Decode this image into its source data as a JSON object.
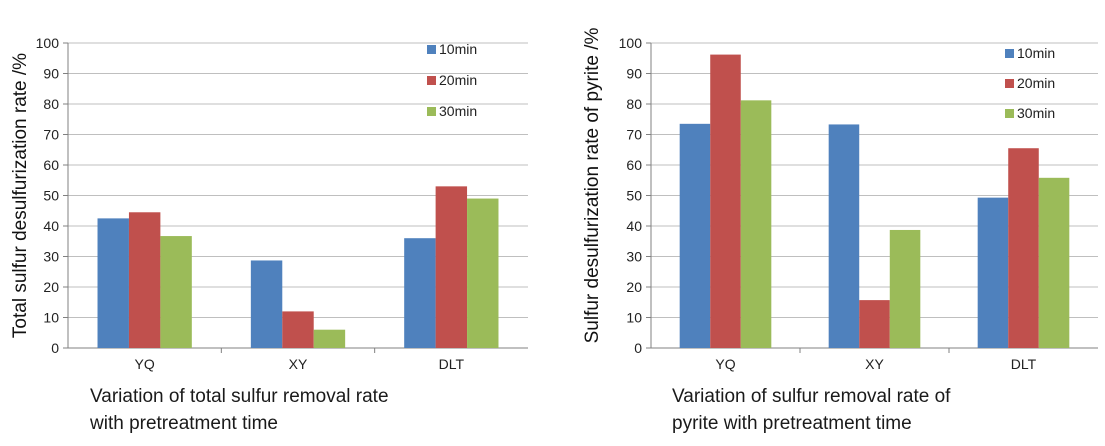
{
  "colors": {
    "10min": "#4f81bd",
    "20min": "#c0504d",
    "30min": "#9bbb59",
    "grid": "#bfbfbf",
    "axis": "#808080"
  },
  "chart_data": [
    {
      "type": "bar",
      "categories": [
        "YQ",
        "XY",
        "DLT"
      ],
      "series": [
        {
          "name": "10min",
          "values": [
            42.5,
            28.7,
            36
          ]
        },
        {
          "name": "20min",
          "values": [
            44.5,
            12,
            53
          ]
        },
        {
          "name": "30min",
          "values": [
            36.7,
            6,
            49
          ]
        }
      ],
      "ylabel": "Total sulfur desulfurization rate /%",
      "ylim": [
        0,
        100
      ],
      "yticks": [
        0,
        10,
        20,
        30,
        40,
        50,
        60,
        70,
        80,
        90,
        100
      ],
      "grid": true,
      "legend": "top-right",
      "caption": [
        "Variation of total sulfur removal rate",
        "with pretreatment time"
      ]
    },
    {
      "type": "bar",
      "categories": [
        "YQ",
        "XY",
        "DLT"
      ],
      "series": [
        {
          "name": "10min",
          "values": [
            73.5,
            73.3,
            49.3
          ]
        },
        {
          "name": "20min",
          "values": [
            96.2,
            15.7,
            65.5
          ]
        },
        {
          "name": "30min",
          "values": [
            81.2,
            38.7,
            55.8
          ]
        }
      ],
      "ylabel": "Sulfur desulfurization rate of pyrite /%",
      "ylim": [
        0,
        100
      ],
      "yticks": [
        0,
        10,
        20,
        30,
        40,
        50,
        60,
        70,
        80,
        90,
        100
      ],
      "grid": true,
      "legend": "top-right",
      "caption": [
        "Variation of sulfur removal rate of",
        "pyrite with pretreatment time"
      ]
    }
  ]
}
